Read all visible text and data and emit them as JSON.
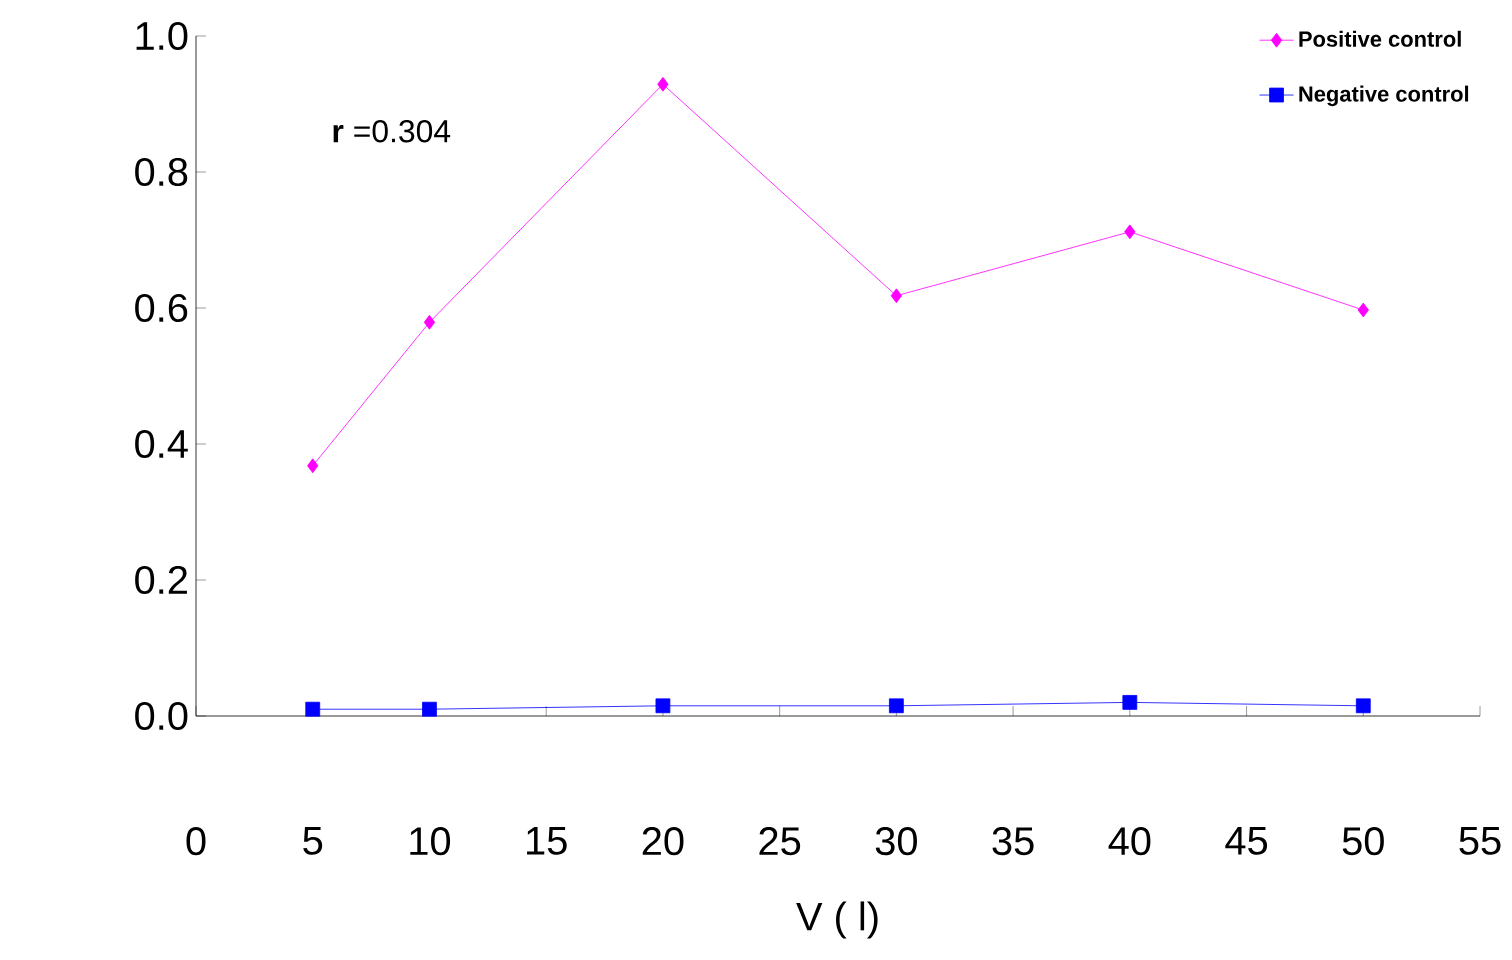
{
  "chart_data": {
    "type": "line",
    "xlabel": "V ( l)",
    "annotations": [
      "**r** =0.304"
    ],
    "x": [
      5,
      10,
      20,
      30,
      40,
      50
    ],
    "series": [
      {
        "name": "Positive control",
        "color": "#ff00ff",
        "marker": "diamond",
        "values": [
          0.368,
          0.579,
          0.929,
          0.618,
          0.712,
          0.597
        ]
      },
      {
        "name": "Negative control",
        "color": "#0000ff",
        "marker": "square",
        "values": [
          0.01,
          0.01,
          0.015,
          0.015,
          0.02,
          0.015
        ]
      }
    ],
    "xlim": [
      0,
      55
    ],
    "ylim": [
      0,
      1
    ],
    "xticks": [
      0,
      5,
      10,
      15,
      20,
      25,
      30,
      35,
      40,
      45,
      50,
      55
    ],
    "yticks": [
      {
        "value": 0,
        "label": "0.0"
      },
      {
        "value": 0.2,
        "label": "0.2"
      },
      {
        "value": 0.4,
        "label": "0.4"
      },
      {
        "value": 0.6,
        "label": "0.6"
      },
      {
        "value": 0.8,
        "label": "0.8"
      },
      {
        "value": 1,
        "label": "1.0"
      }
    ],
    "legend": "top right",
    "grid": false,
    "line_style": "solid"
  }
}
